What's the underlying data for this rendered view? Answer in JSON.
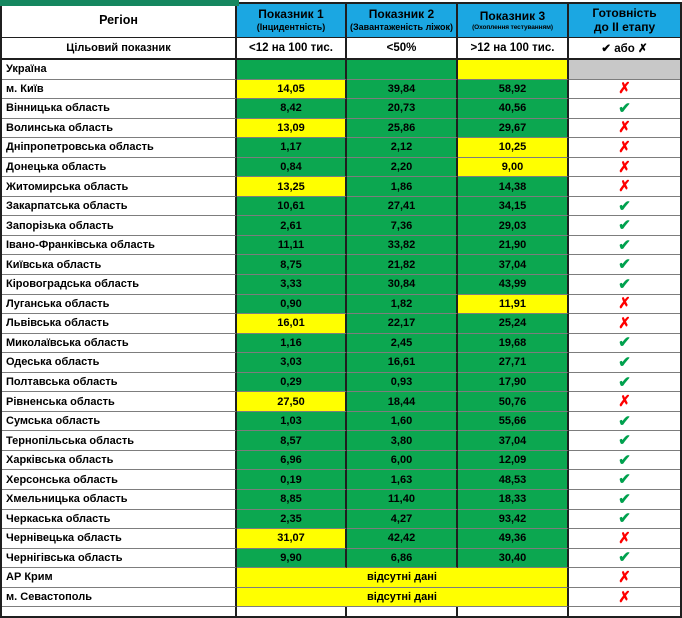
{
  "colors": {
    "header_bg": "#1ba7e2",
    "top_stripe": "#15875f",
    "status_green": "#0ca750",
    "status_yellow": "#ffff00",
    "blank_gray": "#c8c8c8",
    "check_green": "#00a14e",
    "cross_red": "#fe0000"
  },
  "header": {
    "region_label": "Регіон",
    "indicators": [
      {
        "title": "Показник 1",
        "subtitle": "(Інцидентність)"
      },
      {
        "title": "Показник 2",
        "subtitle": "(Завантаженість ліжок)"
      },
      {
        "title": "Показник 3",
        "subtitle": "(Охоплення тестуванням)"
      }
    ],
    "readiness": {
      "title": "Готовність",
      "subtitle": "до ІІ етапу"
    }
  },
  "target_row": {
    "label": "Цільовий показник",
    "indicator1": "<12 на 100 тис.",
    "indicator2": "<50%",
    "indicator3": ">12 на 100 тис.",
    "readiness": "✔ або ✗"
  },
  "symbols": {
    "check": "✔",
    "cross": "✗"
  },
  "no_data_label": "відсутні дані",
  "rows": [
    {
      "region": "Україна",
      "v": [
        "",
        "",
        ""
      ],
      "bg": [
        "green",
        "green",
        "yellow"
      ],
      "ready": "blank"
    },
    {
      "region": "м. Київ",
      "v": [
        "14,05",
        "39,84",
        "58,92"
      ],
      "bg": [
        "yellow",
        "green",
        "green"
      ],
      "ready": "x"
    },
    {
      "region": "Вінницька область",
      "v": [
        "8,42",
        "20,73",
        "40,56"
      ],
      "bg": [
        "green",
        "green",
        "green"
      ],
      "ready": "check"
    },
    {
      "region": "Волинська область",
      "v": [
        "13,09",
        "25,86",
        "29,67"
      ],
      "bg": [
        "yellow",
        "green",
        "green"
      ],
      "ready": "x"
    },
    {
      "region": "Дніпропетровська область",
      "v": [
        "1,17",
        "2,12",
        "10,25"
      ],
      "bg": [
        "green",
        "green",
        "yellow"
      ],
      "ready": "x"
    },
    {
      "region": "Донецька область",
      "v": [
        "0,84",
        "2,20",
        "9,00"
      ],
      "bg": [
        "green",
        "green",
        "yellow"
      ],
      "ready": "x"
    },
    {
      "region": "Житомирська область",
      "v": [
        "13,25",
        "1,86",
        "14,38"
      ],
      "bg": [
        "yellow",
        "green",
        "green"
      ],
      "ready": "x"
    },
    {
      "region": "Закарпатська область",
      "v": [
        "10,61",
        "27,41",
        "34,15"
      ],
      "bg": [
        "green",
        "green",
        "green"
      ],
      "ready": "check"
    },
    {
      "region": "Запорізька область",
      "v": [
        "2,61",
        "7,36",
        "29,03"
      ],
      "bg": [
        "green",
        "green",
        "green"
      ],
      "ready": "check"
    },
    {
      "region": "Івано-Франківська область",
      "v": [
        "11,11",
        "33,82",
        "21,90"
      ],
      "bg": [
        "green",
        "green",
        "green"
      ],
      "ready": "check"
    },
    {
      "region": "Київська область",
      "v": [
        "8,75",
        "21,82",
        "37,04"
      ],
      "bg": [
        "green",
        "green",
        "green"
      ],
      "ready": "check"
    },
    {
      "region": "Кіровоградська область",
      "v": [
        "3,33",
        "30,84",
        "43,99"
      ],
      "bg": [
        "green",
        "green",
        "green"
      ],
      "ready": "check"
    },
    {
      "region": "Луганська область",
      "v": [
        "0,90",
        "1,82",
        "11,91"
      ],
      "bg": [
        "green",
        "green",
        "yellow"
      ],
      "ready": "x"
    },
    {
      "region": "Львівська область",
      "v": [
        "16,01",
        "22,17",
        "25,24"
      ],
      "bg": [
        "yellow",
        "green",
        "green"
      ],
      "ready": "x"
    },
    {
      "region": "Миколаївська область",
      "v": [
        "1,16",
        "2,45",
        "19,68"
      ],
      "bg": [
        "green",
        "green",
        "green"
      ],
      "ready": "check"
    },
    {
      "region": "Одеська область",
      "v": [
        "3,03",
        "16,61",
        "27,71"
      ],
      "bg": [
        "green",
        "green",
        "green"
      ],
      "ready": "check"
    },
    {
      "region": "Полтавська область",
      "v": [
        "0,29",
        "0,93",
        "17,90"
      ],
      "bg": [
        "green",
        "green",
        "green"
      ],
      "ready": "check"
    },
    {
      "region": "Рівненська область",
      "v": [
        "27,50",
        "18,44",
        "50,76"
      ],
      "bg": [
        "yellow",
        "green",
        "green"
      ],
      "ready": "x"
    },
    {
      "region": "Сумська область",
      "v": [
        "1,03",
        "1,60",
        "55,66"
      ],
      "bg": [
        "green",
        "green",
        "green"
      ],
      "ready": "check"
    },
    {
      "region": "Тернопільська область",
      "v": [
        "8,57",
        "3,80",
        "37,04"
      ],
      "bg": [
        "green",
        "green",
        "green"
      ],
      "ready": "check"
    },
    {
      "region": "Харківська область",
      "v": [
        "6,96",
        "6,00",
        "12,09"
      ],
      "bg": [
        "green",
        "green",
        "green"
      ],
      "ready": "check"
    },
    {
      "region": "Херсонська область",
      "v": [
        "0,19",
        "1,63",
        "48,53"
      ],
      "bg": [
        "green",
        "green",
        "green"
      ],
      "ready": "check"
    },
    {
      "region": "Хмельницька область",
      "v": [
        "8,85",
        "11,40",
        "18,33"
      ],
      "bg": [
        "green",
        "green",
        "green"
      ],
      "ready": "check"
    },
    {
      "region": "Черкаська область",
      "v": [
        "2,35",
        "4,27",
        "93,42"
      ],
      "bg": [
        "green",
        "green",
        "green"
      ],
      "ready": "check"
    },
    {
      "region": "Чернівецька область",
      "v": [
        "31,07",
        "42,42",
        "49,36"
      ],
      "bg": [
        "yellow",
        "green",
        "green"
      ],
      "ready": "x"
    },
    {
      "region": "Чернігівська область",
      "v": [
        "9,90",
        "6,86",
        "30,40"
      ],
      "bg": [
        "green",
        "green",
        "green"
      ],
      "ready": "check"
    },
    {
      "region": "АР Крим",
      "no_data": true,
      "ready": "x"
    },
    {
      "region": "м. Севастополь",
      "no_data": true,
      "ready": "x"
    }
  ]
}
